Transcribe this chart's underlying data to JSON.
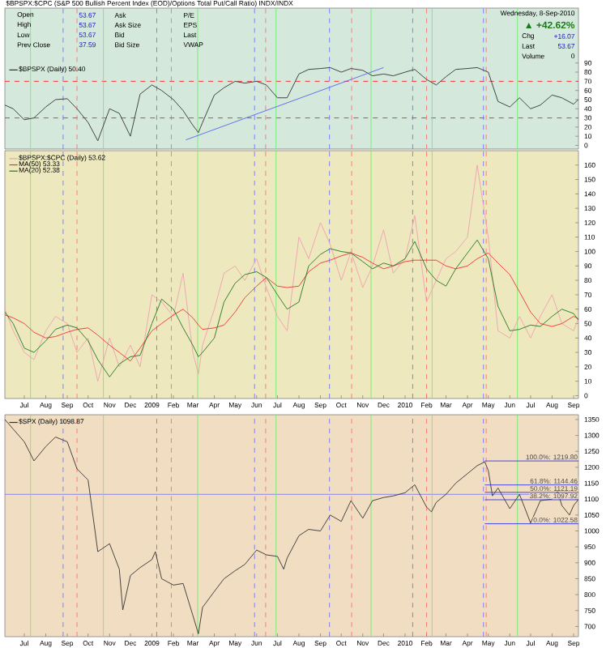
{
  "chart_data": [
    {
      "type": "line",
      "title": "$BPSPX:$CPC (S&P 500 Bullish Percent Index (EOD)/Options Total Put/Call Ratio) INDX/INDX",
      "annotations": [
        "Open",
        "53.67",
        "High",
        "53.67",
        "Low",
        "53.67",
        "Prev Close",
        "37.59",
        "Ask",
        "Ask Size",
        "Bid",
        "Bid Size",
        "P/E",
        "EPS",
        "Last",
        "VWAP",
        "Wednesday, 8-Sep-2010",
        "▲ +42.62%",
        "Chg",
        "+16.07",
        "Last",
        "53.67",
        "Volume",
        "0"
      ],
      "x": [
        "2008-06-03",
        "2008-06-15",
        "2008-07-01",
        "2008-07-15",
        "2008-08-01",
        "2008-08-15",
        "2008-09-01",
        "2008-09-15",
        "2008-10-01",
        "2008-10-15",
        "2008-11-01",
        "2008-11-15",
        "2008-12-01",
        "2008-12-15",
        "2009-01-01",
        "2009-01-15",
        "2009-02-01",
        "2009-02-15",
        "2009-03-01",
        "2009-03-09",
        "2009-03-15",
        "2009-04-01",
        "2009-04-15",
        "2009-05-01",
        "2009-05-15",
        "2009-06-01",
        "2009-06-15",
        "2009-07-01",
        "2009-07-15",
        "2009-08-01",
        "2009-08-15",
        "2009-09-01",
        "2009-09-15",
        "2009-10-01",
        "2009-10-15",
        "2009-11-01",
        "2009-11-15",
        "2009-12-01",
        "2009-12-15",
        "2010-01-01",
        "2010-01-15",
        "2010-02-01",
        "2010-02-15",
        "2010-03-01",
        "2010-03-15",
        "2010-04-01",
        "2010-04-15",
        "2010-05-01",
        "2010-05-15",
        "2010-06-01",
        "2010-06-15",
        "2010-07-01",
        "2010-07-15",
        "2010-08-01",
        "2010-08-15",
        "2010-09-01",
        "2010-09-08"
      ],
      "series": [
        {
          "name": "$BPSPX (Daily) 50.40",
          "color": "#333333",
          "values": [
            44,
            40,
            28,
            30,
            42,
            50,
            51,
            40,
            25,
            5,
            40,
            35,
            10,
            56,
            66,
            60,
            50,
            38,
            22,
            14,
            25,
            55,
            63,
            70,
            68,
            70,
            66,
            52,
            52,
            78,
            83,
            84,
            85,
            80,
            84,
            82,
            76,
            78,
            76,
            80,
            83,
            72,
            66,
            75,
            83,
            84,
            85,
            80,
            48,
            42,
            52,
            40,
            44,
            55,
            52,
            45,
            50.4
          ]
        },
        {
          "color": "#5566ee",
          "x": [
            "2009-02-19",
            "2009-12-01"
          ],
          "values": [
            6,
            85
          ]
        }
      ],
      "xlim": [
        "2008-06-03",
        "2010-09-08"
      ],
      "ylim": [
        -4,
        150
      ],
      "yticks": [
        0,
        10,
        20,
        30,
        40,
        50,
        60,
        70,
        80,
        90
      ],
      "tick_labels": "y",
      "legend": "left",
      "ref_lines": [
        {
          "axis": "y",
          "value": 70,
          "color": "#ff3333",
          "line_style": "dashed"
        },
        {
          "axis": "y",
          "value": 30,
          "color": "#ff3333",
          "line_style": "dashed"
        },
        {
          "axis": "x",
          "value": "2008-07-10",
          "color": "#66ee66",
          "line_style": "solid"
        },
        {
          "axis": "x",
          "value": "2008-08-26",
          "color": "#6666ff",
          "line_style": "dashed"
        },
        {
          "axis": "x",
          "value": "2008-09-15",
          "color": "#ff6666",
          "line_style": "dashed"
        },
        {
          "axis": "x",
          "value": "2008-10-23",
          "color": "#66ee66",
          "line_style": "solid"
        },
        {
          "axis": "x",
          "value": "2009-01-08",
          "color": "#6666ff",
          "line_style": "dashed"
        },
        {
          "axis": "x",
          "value": "2009-01-29",
          "color": "#ff6666",
          "line_style": "dashed"
        },
        {
          "axis": "x",
          "value": "2009-03-08",
          "color": "#66ee66",
          "line_style": "solid"
        },
        {
          "axis": "x",
          "value": "2009-05-29",
          "color": "#6666ff",
          "line_style": "dashed"
        },
        {
          "axis": "x",
          "value": "2009-06-14",
          "color": "#ff6666",
          "line_style": "dashed"
        },
        {
          "axis": "x",
          "value": "2009-06-29",
          "color": "#66ee66",
          "line_style": "solid"
        },
        {
          "axis": "x",
          "value": "2009-09-14",
          "color": "#6666ff",
          "line_style": "dashed"
        },
        {
          "axis": "x",
          "value": "2009-10-16",
          "color": "#ff6666",
          "line_style": "dashed"
        },
        {
          "axis": "x",
          "value": "2009-11-13",
          "color": "#66ee66",
          "line_style": "solid"
        },
        {
          "axis": "x",
          "value": "2010-01-12",
          "color": "#6666ff",
          "line_style": "dashed"
        },
        {
          "axis": "x",
          "value": "2010-02-01",
          "color": "#ff6666",
          "line_style": "dashed"
        },
        {
          "axis": "x",
          "value": "2010-02-09",
          "color": "#66ee66",
          "line_style": "solid"
        },
        {
          "axis": "x",
          "value": "2010-04-24",
          "color": "#6666ff",
          "line_style": "dashed"
        },
        {
          "axis": "x",
          "value": "2010-04-28",
          "color": "#ff6666",
          "line_style": "dashed"
        },
        {
          "axis": "x",
          "value": "2010-06-12",
          "color": "#66ee66",
          "line_style": "solid"
        }
      ]
    },
    {
      "type": "line",
      "x": [
        "2008-06-03",
        "2008-06-15",
        "2008-07-01",
        "2008-07-15",
        "2008-08-01",
        "2008-08-15",
        "2008-09-01",
        "2008-09-15",
        "2008-10-01",
        "2008-10-15",
        "2008-11-01",
        "2008-11-15",
        "2008-12-01",
        "2008-12-15",
        "2009-01-01",
        "2009-01-15",
        "2009-02-01",
        "2009-02-15",
        "2009-03-01",
        "2009-03-09",
        "2009-03-15",
        "2009-04-01",
        "2009-04-15",
        "2009-05-01",
        "2009-05-15",
        "2009-06-01",
        "2009-06-15",
        "2009-07-01",
        "2009-07-15",
        "2009-08-01",
        "2009-08-15",
        "2009-09-01",
        "2009-09-15",
        "2009-10-01",
        "2009-10-15",
        "2009-11-01",
        "2009-11-15",
        "2009-12-01",
        "2009-12-15",
        "2010-01-01",
        "2010-01-15",
        "2010-02-01",
        "2010-02-15",
        "2010-03-01",
        "2010-03-15",
        "2010-04-01",
        "2010-04-15",
        "2010-05-01",
        "2010-05-15",
        "2010-06-01",
        "2010-06-15",
        "2010-07-01",
        "2010-07-15",
        "2010-08-01",
        "2010-08-15",
        "2010-09-01",
        "2010-09-08"
      ],
      "series": [
        {
          "name": "$BPSPX:$CPC (Daily) 53.62",
          "color": "#f0a0b0",
          "values": [
            60,
            45,
            30,
            25,
            45,
            55,
            50,
            30,
            40,
            10,
            40,
            20,
            35,
            20,
            70,
            65,
            55,
            85,
            30,
            15,
            35,
            60,
            85,
            90,
            80,
            95,
            75,
            55,
            45,
            110,
            95,
            120,
            105,
            80,
            100,
            75,
            90,
            115,
            85,
            95,
            125,
            65,
            80,
            95,
            100,
            110,
            160,
            110,
            45,
            40,
            55,
            40,
            55,
            70,
            50,
            45,
            53.62
          ]
        },
        {
          "name": "MA(50) 53.33",
          "color": "#ee3333",
          "values": [
            56,
            54,
            50,
            44,
            40,
            41,
            44,
            46,
            47,
            42,
            35,
            30,
            24,
            33,
            45,
            50,
            56,
            60,
            54,
            49,
            46,
            47,
            49,
            58,
            68,
            76,
            82,
            76,
            75,
            76,
            86,
            92,
            94,
            97,
            99,
            96,
            92,
            88,
            90,
            93,
            94,
            94,
            94,
            90,
            88,
            90,
            95,
            99,
            92,
            84,
            72,
            58,
            50,
            48,
            50,
            55,
            53.33
          ]
        },
        {
          "name": "MA(20) 52.38",
          "color": "#227722",
          "values": [
            58,
            50,
            33,
            30,
            38,
            46,
            49,
            47,
            38,
            25,
            13,
            22,
            27,
            28,
            50,
            67,
            60,
            47,
            35,
            27,
            30,
            40,
            65,
            78,
            84,
            86,
            82,
            70,
            60,
            65,
            90,
            98,
            102,
            100,
            99,
            93,
            88,
            92,
            90,
            95,
            107,
            88,
            80,
            76,
            88,
            99,
            108,
            95,
            62,
            45,
            46,
            49,
            48,
            55,
            60,
            57,
            52.38
          ]
        }
      ],
      "xlim": [
        "2008-06-03",
        "2010-09-08"
      ],
      "ylim": [
        -2,
        170
      ],
      "yticks": [
        0,
        10,
        20,
        30,
        40,
        50,
        60,
        70,
        80,
        90,
        100,
        110,
        120,
        130,
        140,
        150,
        160
      ],
      "xticks": [
        {
          "value": "2008-07-01",
          "label": "Jul"
        },
        {
          "value": "2008-08-01",
          "label": "Aug"
        },
        {
          "value": "2008-09-01",
          "label": "Sep"
        },
        {
          "value": "2008-10-01",
          "label": "Oct"
        },
        {
          "value": "2008-11-01",
          "label": "Nov"
        },
        {
          "value": "2008-12-01",
          "label": "Dec"
        },
        {
          "value": "2009-01-01",
          "label": "2009"
        },
        {
          "value": "2009-02-01",
          "label": "Feb"
        },
        {
          "value": "2009-03-01",
          "label": "Mar"
        },
        {
          "value": "2009-04-01",
          "label": "Apr"
        },
        {
          "value": "2009-05-01",
          "label": "May"
        },
        {
          "value": "2009-06-01",
          "label": "Jun"
        },
        {
          "value": "2009-07-01",
          "label": "Jul"
        },
        {
          "value": "2009-08-01",
          "label": "Aug"
        },
        {
          "value": "2009-09-01",
          "label": "Sep"
        },
        {
          "value": "2009-10-01",
          "label": "Oct"
        },
        {
          "value": "2009-11-01",
          "label": "Nov"
        },
        {
          "value": "2009-12-01",
          "label": "Dec"
        },
        {
          "value": "2010-01-01",
          "label": "2010"
        },
        {
          "value": "2010-02-01",
          "label": "Feb"
        },
        {
          "value": "2010-03-01",
          "label": "Mar"
        },
        {
          "value": "2010-04-01",
          "label": "Apr"
        },
        {
          "value": "2010-05-01",
          "label": "May"
        },
        {
          "value": "2010-06-01",
          "label": "Jun"
        },
        {
          "value": "2010-07-01",
          "label": "Jul"
        },
        {
          "value": "2010-08-01",
          "label": "Aug"
        },
        {
          "value": "2010-09-01",
          "label": "Sep"
        }
      ],
      "legend": "top left",
      "ref_lines": [
        {
          "axis": "x",
          "value": "2008-07-10",
          "color": "#66ee66",
          "line_style": "solid"
        },
        {
          "axis": "x",
          "value": "2008-08-26",
          "color": "#6666ff",
          "line_style": "dashed"
        },
        {
          "axis": "x",
          "value": "2008-09-15",
          "color": "#ff6666",
          "line_style": "dashed"
        },
        {
          "axis": "x",
          "value": "2008-10-23",
          "color": "#66ee66",
          "line_style": "solid"
        },
        {
          "axis": "x",
          "value": "2009-01-08",
          "color": "#6666ff",
          "line_style": "dashed"
        },
        {
          "axis": "x",
          "value": "2009-01-29",
          "color": "#ff6666",
          "line_style": "dashed"
        },
        {
          "axis": "x",
          "value": "2009-03-08",
          "color": "#66ee66",
          "line_style": "solid"
        },
        {
          "axis": "x",
          "value": "2009-05-29",
          "color": "#6666ff",
          "line_style": "dashed"
        },
        {
          "axis": "x",
          "value": "2009-06-14",
          "color": "#ff6666",
          "line_style": "dashed"
        },
        {
          "axis": "x",
          "value": "2009-06-29",
          "color": "#66ee66",
          "line_style": "solid"
        },
        {
          "axis": "x",
          "value": "2009-09-14",
          "color": "#6666ff",
          "line_style": "dashed"
        },
        {
          "axis": "x",
          "value": "2009-10-16",
          "color": "#ff6666",
          "line_style": "dashed"
        },
        {
          "axis": "x",
          "value": "2009-11-13",
          "color": "#66ee66",
          "line_style": "solid"
        },
        {
          "axis": "x",
          "value": "2010-01-12",
          "color": "#6666ff",
          "line_style": "dashed"
        },
        {
          "axis": "x",
          "value": "2010-02-01",
          "color": "#ff6666",
          "line_style": "dashed"
        },
        {
          "axis": "x",
          "value": "2010-02-09",
          "color": "#66ee66",
          "line_style": "solid"
        },
        {
          "axis": "x",
          "value": "2010-04-24",
          "color": "#6666ff",
          "line_style": "dashed"
        },
        {
          "axis": "x",
          "value": "2010-04-28",
          "color": "#ff6666",
          "line_style": "dashed"
        },
        {
          "axis": "x",
          "value": "2010-06-12",
          "color": "#66ee66",
          "line_style": "solid"
        }
      ]
    },
    {
      "type": "line",
      "x": [
        "2008-06-03",
        "2008-06-15",
        "2008-07-01",
        "2008-07-15",
        "2008-08-01",
        "2008-08-15",
        "2008-09-01",
        "2008-09-15",
        "2008-10-01",
        "2008-10-15",
        "2008-11-01",
        "2008-11-15",
        "2008-11-20",
        "2008-12-01",
        "2008-12-15",
        "2009-01-01",
        "2009-01-06",
        "2009-01-15",
        "2009-02-01",
        "2009-02-15",
        "2009-03-01",
        "2009-03-09",
        "2009-03-15",
        "2009-04-01",
        "2009-04-15",
        "2009-05-01",
        "2009-05-15",
        "2009-06-01",
        "2009-06-15",
        "2009-07-01",
        "2009-07-10",
        "2009-07-15",
        "2009-08-01",
        "2009-08-15",
        "2009-09-01",
        "2009-09-15",
        "2009-10-01",
        "2009-10-15",
        "2009-11-01",
        "2009-11-15",
        "2009-12-01",
        "2009-12-15",
        "2010-01-01",
        "2010-01-15",
        "2010-02-01",
        "2010-02-08",
        "2010-02-15",
        "2010-03-01",
        "2010-03-15",
        "2010-04-01",
        "2010-04-15",
        "2010-04-26",
        "2010-05-01",
        "2010-05-07",
        "2010-05-15",
        "2010-06-01",
        "2010-06-15",
        "2010-07-01",
        "2010-07-15",
        "2010-08-01",
        "2010-08-09",
        "2010-08-15",
        "2010-08-26",
        "2010-09-01",
        "2010-09-08"
      ],
      "series": [
        {
          "name": "$SPX (Daily) 1098.87",
          "color": "#333333",
          "values": [
            1350,
            1320,
            1280,
            1220,
            1265,
            1295,
            1280,
            1195,
            1160,
            935,
            960,
            880,
            752,
            860,
            885,
            910,
            935,
            850,
            830,
            835,
            735,
            677,
            760,
            810,
            850,
            875,
            895,
            940,
            925,
            920,
            880,
            915,
            985,
            1005,
            1000,
            1050,
            1030,
            1095,
            1040,
            1095,
            1105,
            1110,
            1120,
            1145,
            1075,
            1060,
            1090,
            1115,
            1150,
            1180,
            1205,
            1217,
            1190,
            1110,
            1135,
            1070,
            1115,
            1025,
            1095,
            1100,
            1125,
            1080,
            1050,
            1080,
            1098.87
          ]
        },
        {
          "color": "#3333ee",
          "x": [
            "2010-04-26",
            "2010-09-08"
          ],
          "values": [
            1219.8,
            1219.8
          ]
        },
        {
          "color": "#3333ee",
          "x": [
            "2010-04-26",
            "2010-09-08"
          ],
          "values": [
            1144.46,
            1144.46
          ]
        },
        {
          "color": "#3333ee",
          "x": [
            "2010-04-26",
            "2010-09-08"
          ],
          "values": [
            1121.19,
            1121.19
          ]
        },
        {
          "color": "#3333ee",
          "x": [
            "2010-04-26",
            "2010-09-08"
          ],
          "values": [
            1097.92,
            1097.92
          ]
        },
        {
          "color": "#3333ee",
          "x": [
            "2010-04-26",
            "2010-09-08"
          ],
          "values": [
            1022.58,
            1022.58
          ]
        }
      ],
      "annotations": [
        {
          "text": "100.0%: 1219.80",
          "x": "2010-09-08",
          "y": 1219.8
        },
        {
          "text": "61.8%: 1144.46",
          "x": "2010-09-08",
          "y": 1144.46
        },
        {
          "text": "50.0%: 1121.19",
          "x": "2010-09-08",
          "y": 1121.19
        },
        {
          "text": "38.2%: 1097.92",
          "x": "2010-09-08",
          "y": 1097.92
        },
        {
          "text": "0.0%: 1022.58",
          "x": "2010-09-08",
          "y": 1022.58
        }
      ],
      "xlim": [
        "2008-06-03",
        "2010-09-08"
      ],
      "ylim": [
        668,
        1365
      ],
      "yticks": [
        700,
        750,
        800,
        850,
        900,
        950,
        1000,
        1050,
        1100,
        1150,
        1200,
        1250,
        1300,
        1350
      ],
      "xticks": [
        {
          "value": "2008-07-01",
          "label": "Jul"
        },
        {
          "value": "2008-08-01",
          "label": "Aug"
        },
        {
          "value": "2008-09-01",
          "label": "Sep"
        },
        {
          "value": "2008-10-01",
          "label": "Oct"
        },
        {
          "value": "2008-11-01",
          "label": "Nov"
        },
        {
          "value": "2008-12-01",
          "label": "Dec"
        },
        {
          "value": "2009-01-01",
          "label": "2009"
        },
        {
          "value": "2009-02-01",
          "label": "Feb"
        },
        {
          "value": "2009-03-01",
          "label": "Mar"
        },
        {
          "value": "2009-04-01",
          "label": "Apr"
        },
        {
          "value": "2009-05-01",
          "label": "May"
        },
        {
          "value": "2009-06-01",
          "label": "Jun"
        },
        {
          "value": "2009-07-01",
          "label": "Jul"
        },
        {
          "value": "2009-08-01",
          "label": "Aug"
        },
        {
          "value": "2009-09-01",
          "label": "Sep"
        },
        {
          "value": "2009-10-01",
          "label": "Oct"
        },
        {
          "value": "2009-11-01",
          "label": "Nov"
        },
        {
          "value": "2009-12-01",
          "label": "Dec"
        },
        {
          "value": "2010-01-01",
          "label": "2010"
        },
        {
          "value": "2010-02-01",
          "label": "Feb"
        },
        {
          "value": "2010-03-01",
          "label": "Mar"
        },
        {
          "value": "2010-04-01",
          "label": "Apr"
        },
        {
          "value": "2010-05-01",
          "label": "May"
        },
        {
          "value": "2010-06-01",
          "label": "Jun"
        },
        {
          "value": "2010-07-01",
          "label": "Jul"
        },
        {
          "value": "2010-08-01",
          "label": "Aug"
        },
        {
          "value": "2010-09-01",
          "label": "Sep"
        }
      ],
      "legend": "top left",
      "ref_lines": [
        {
          "axis": "y",
          "value": 1115,
          "color": "#8888ee",
          "line_style": "solid"
        },
        {
          "axis": "x",
          "value": "2008-07-10",
          "color": "#66ee66",
          "line_style": "solid"
        },
        {
          "axis": "x",
          "value": "2008-08-26",
          "color": "#6666ff",
          "line_style": "dashed"
        },
        {
          "axis": "x",
          "value": "2008-09-15",
          "color": "#ff6666",
          "line_style": "dashed"
        },
        {
          "axis": "x",
          "value": "2008-10-23",
          "color": "#66ee66",
          "line_style": "solid"
        },
        {
          "axis": "x",
          "value": "2009-01-08",
          "color": "#6666ff",
          "line_style": "dashed"
        },
        {
          "axis": "x",
          "value": "2009-01-29",
          "color": "#ff6666",
          "line_style": "dashed"
        },
        {
          "axis": "x",
          "value": "2009-03-08",
          "color": "#66ee66",
          "line_style": "solid"
        },
        {
          "axis": "x",
          "value": "2009-05-29",
          "color": "#6666ff",
          "line_style": "dashed"
        },
        {
          "axis": "x",
          "value": "2009-06-14",
          "color": "#ff6666",
          "line_style": "dashed"
        },
        {
          "axis": "x",
          "value": "2009-06-29",
          "color": "#66ee66",
          "line_style": "solid"
        },
        {
          "axis": "x",
          "value": "2009-09-14",
          "color": "#6666ff",
          "line_style": "dashed"
        },
        {
          "axis": "x",
          "value": "2009-10-16",
          "color": "#ff6666",
          "line_style": "dashed"
        },
        {
          "axis": "x",
          "value": "2009-11-13",
          "color": "#66ee66",
          "line_style": "solid"
        },
        {
          "axis": "x",
          "value": "2010-01-12",
          "color": "#6666ff",
          "line_style": "dashed"
        },
        {
          "axis": "x",
          "value": "2010-02-01",
          "color": "#ff6666",
          "line_style": "dashed"
        },
        {
          "axis": "x",
          "value": "2010-02-09",
          "color": "#66ee66",
          "line_style": "solid"
        },
        {
          "axis": "x",
          "value": "2010-04-24",
          "color": "#6666ff",
          "line_style": "dashed"
        },
        {
          "axis": "x",
          "value": "2010-04-28",
          "color": "#ff6666",
          "line_style": "dashed"
        },
        {
          "axis": "x",
          "value": "2010-06-12",
          "color": "#66ee66",
          "line_style": "solid"
        }
      ]
    }
  ]
}
